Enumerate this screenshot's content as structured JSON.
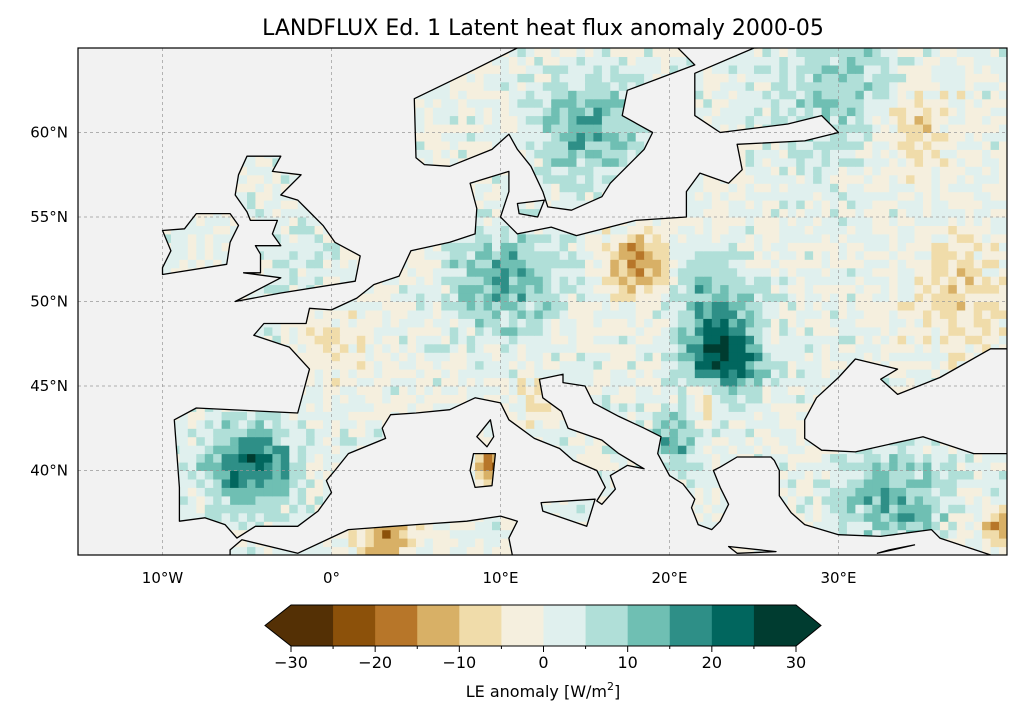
{
  "chart_data": {
    "type": "heatmap",
    "title": "LANDFLUX Ed. 1 Latent heat flux anomaly 2000-05",
    "projection": "PlateCarree",
    "extent": {
      "lon": [
        -15,
        40
      ],
      "lat": [
        35,
        65
      ]
    },
    "grid": true,
    "x_ticks": [
      {
        "value": -10,
        "label": "10°W"
      },
      {
        "value": 0,
        "label": "0°"
      },
      {
        "value": 10,
        "label": "10°E"
      },
      {
        "value": 20,
        "label": "20°E"
      },
      {
        "value": 30,
        "label": "30°E"
      }
    ],
    "y_ticks": [
      {
        "value": 60,
        "label": "60°N"
      },
      {
        "value": 55,
        "label": "55°N"
      },
      {
        "value": 50,
        "label": "50°N"
      },
      {
        "value": 45,
        "label": "45°N"
      },
      {
        "value": 40,
        "label": "40°N"
      }
    ],
    "colorbar": {
      "label": "LE anomaly [W/m²]",
      "label_main": "LE anomaly [W/m",
      "label_sup": "2",
      "label_end": "]",
      "range": [
        -30,
        30
      ],
      "extend": "both",
      "step": 5,
      "tick_labels": [
        "−30",
        "−20",
        "−10",
        "0",
        "10",
        "20",
        "30"
      ],
      "tick_values": [
        -30,
        -20,
        -10,
        0,
        10,
        20,
        30
      ],
      "colors": [
        "#543005",
        "#8c510a",
        "#b77629",
        "#d8b066",
        "#f0dcaa",
        "#f5efde",
        "#e0f0ee",
        "#b0dfd8",
        "#6fbfb3",
        "#2e8f87",
        "#01665e",
        "#003c30"
      ]
    },
    "ocean_color": "#f2f2f2"
  }
}
